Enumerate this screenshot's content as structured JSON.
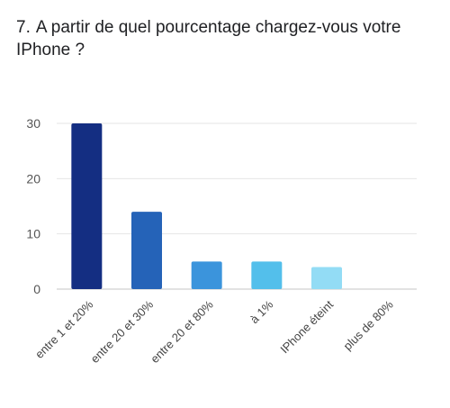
{
  "question": {
    "number": "7.",
    "text": "A partir de quel pourcentage chargez-vous votre IPhone ?"
  },
  "chart_data": {
    "type": "bar",
    "categories": [
      "entre 1 et 20%",
      "entre 20 et 30%",
      "entre 20 et 80%",
      "à 1%",
      "IPhone éteint",
      "plus de 80%"
    ],
    "values": [
      30,
      14,
      5,
      5,
      4,
      0
    ],
    "colors": [
      "#142e82",
      "#2563b8",
      "#3b94dc",
      "#53bfeb",
      "#93dcf5",
      "#cdeefa"
    ],
    "yticks": [
      0,
      10,
      20,
      30
    ],
    "ylim": [
      0,
      30
    ],
    "grid": true,
    "legend": "none"
  }
}
